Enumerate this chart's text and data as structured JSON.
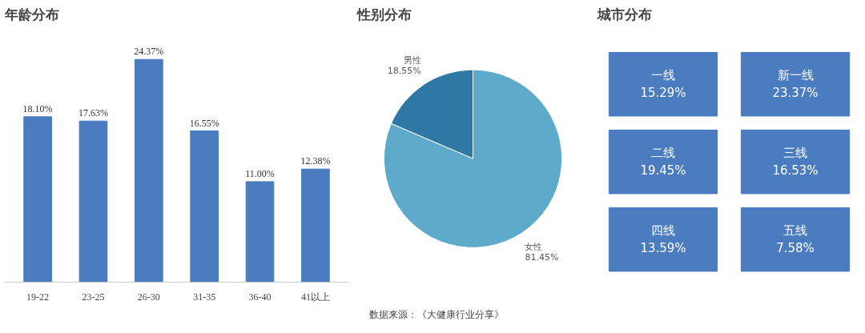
{
  "chart_data": [
    {
      "type": "bar",
      "title": "年龄分布",
      "categories": [
        "19-22",
        "23-25",
        "26-30",
        "31-35",
        "36-40",
        "41以上"
      ],
      "values": [
        18.1,
        17.63,
        24.37,
        16.55,
        11.0,
        12.38
      ],
      "value_labels": [
        "18.10%",
        "17.63%",
        "24.37%",
        "16.55%",
        "11.00%",
        "12.38%"
      ],
      "color": "#4a7cbf",
      "grid": false,
      "tick_labels": "x"
    },
    {
      "type": "pie",
      "title": "性别分布",
      "categories": [
        "男性",
        "女性"
      ],
      "values": [
        18.55,
        81.45
      ],
      "value_labels": [
        "18.55%",
        "81.45%"
      ],
      "colors": [
        "#2f78a5",
        "#5eaacb"
      ],
      "annotations": [
        "数据来源：《大健康行业分享》"
      ]
    },
    {
      "type": "other",
      "title": "城市分布",
      "categories": [
        "一线",
        "新一线",
        "二线",
        "三线",
        "四线",
        "五线"
      ],
      "values": [
        15.29,
        23.37,
        19.45,
        16.53,
        13.59,
        7.58
      ],
      "value_labels": [
        "15.29%",
        "23.37%",
        "19.45%",
        "16.53%",
        "13.59%",
        "7.58%"
      ],
      "color": "#4a7cbf"
    }
  ]
}
